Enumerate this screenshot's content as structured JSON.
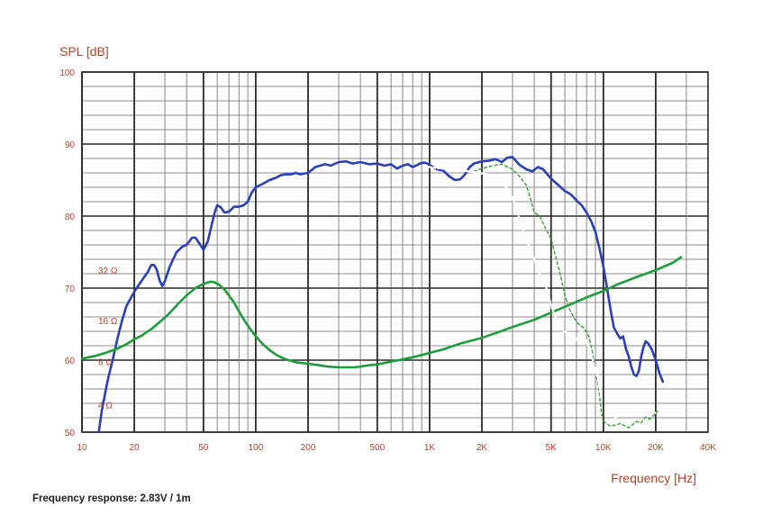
{
  "chart_data": {
    "type": "line",
    "title": "",
    "ylabel": "SPL [dB]",
    "xlabel": "Frequency [Hz]",
    "x_scale": "log",
    "xlim": [
      10,
      40000
    ],
    "ylim": [
      50,
      100
    ],
    "y_ticks": [
      {
        "value": 50,
        "label": "50"
      },
      {
        "value": 60,
        "label": "60"
      },
      {
        "value": 70,
        "label": "70"
      },
      {
        "value": 80,
        "label": "80"
      },
      {
        "value": 90,
        "label": "90"
      },
      {
        "value": 100,
        "label": "100"
      }
    ],
    "x_ticks": [
      {
        "value": 10,
        "label": "10"
      },
      {
        "value": 20,
        "label": "20"
      },
      {
        "value": 50,
        "label": "50"
      },
      {
        "value": 100,
        "label": "100"
      },
      {
        "value": 200,
        "label": "200"
      },
      {
        "value": 500,
        "label": "500"
      },
      {
        "value": 1000,
        "label": "1K"
      },
      {
        "value": 2000,
        "label": "2K"
      },
      {
        "value": 5000,
        "label": "5K"
      },
      {
        "value": 10000,
        "label": "10K"
      },
      {
        "value": 20000,
        "label": "20K"
      },
      {
        "value": 40000,
        "label": "40K"
      }
    ],
    "impedance_ticks": [
      {
        "value": 72.5,
        "label": "32 Ω"
      },
      {
        "value": 65.5,
        "label": "16 Ω"
      },
      {
        "value": 59.8,
        "label": "8 Ω"
      },
      {
        "value": 53.8,
        "label": "4 Ω"
      }
    ],
    "grid": true,
    "legend": "none",
    "series": [
      {
        "color": "#2b3fb8",
        "style": "solid",
        "points": [
          [
            12.5,
            50
          ],
          [
            13,
            53
          ],
          [
            14,
            57
          ],
          [
            15,
            60
          ],
          [
            16,
            63
          ],
          [
            17,
            65.5
          ],
          [
            18,
            67.5
          ],
          [
            20,
            69.5
          ],
          [
            22,
            71
          ],
          [
            24,
            72.3
          ],
          [
            25,
            73.2
          ],
          [
            26,
            73.2
          ],
          [
            27,
            72.5
          ],
          [
            28,
            71
          ],
          [
            29,
            70.3
          ],
          [
            30,
            71
          ],
          [
            32,
            73
          ],
          [
            35,
            75
          ],
          [
            38,
            75.8
          ],
          [
            40,
            76
          ],
          [
            43,
            77
          ],
          [
            45,
            77
          ],
          [
            48,
            76
          ],
          [
            50,
            75.3
          ],
          [
            53,
            76.5
          ],
          [
            56,
            79
          ],
          [
            58,
            80.5
          ],
          [
            60,
            81.5
          ],
          [
            63,
            81.2
          ],
          [
            66,
            80.5
          ],
          [
            70,
            80.6
          ],
          [
            75,
            81.3
          ],
          [
            80,
            81.3
          ],
          [
            85,
            81.5
          ],
          [
            90,
            82
          ],
          [
            95,
            83.3
          ],
          [
            100,
            84
          ],
          [
            110,
            84.5
          ],
          [
            120,
            85
          ],
          [
            130,
            85.3
          ],
          [
            140,
            85.7
          ],
          [
            150,
            85.8
          ],
          [
            160,
            85.8
          ],
          [
            170,
            86
          ],
          [
            180,
            85.8
          ],
          [
            200,
            86
          ],
          [
            220,
            86.8
          ],
          [
            250,
            87.2
          ],
          [
            270,
            87
          ],
          [
            300,
            87.5
          ],
          [
            330,
            87.6
          ],
          [
            360,
            87.3
          ],
          [
            400,
            87.5
          ],
          [
            450,
            87.2
          ],
          [
            500,
            87.3
          ],
          [
            550,
            87
          ],
          [
            600,
            87.2
          ],
          [
            650,
            86.6
          ],
          [
            700,
            87
          ],
          [
            750,
            87.2
          ],
          [
            800,
            86.8
          ],
          [
            850,
            87.1
          ],
          [
            900,
            87.4
          ],
          [
            950,
            87.4
          ],
          [
            1000,
            87.1
          ],
          [
            1100,
            86.5
          ],
          [
            1200,
            86.3
          ],
          [
            1300,
            85.5
          ],
          [
            1400,
            85
          ],
          [
            1500,
            85.1
          ],
          [
            1600,
            85.8
          ],
          [
            1700,
            86.8
          ],
          [
            1800,
            87.3
          ],
          [
            2000,
            87.6
          ],
          [
            2200,
            87.7
          ],
          [
            2400,
            87.9
          ],
          [
            2600,
            87.5
          ],
          [
            2800,
            88.1
          ],
          [
            3000,
            88.2
          ],
          [
            3300,
            87.1
          ],
          [
            3600,
            86.5
          ],
          [
            3900,
            86.2
          ],
          [
            4200,
            86.8
          ],
          [
            4500,
            86.5
          ],
          [
            5000,
            85.2
          ],
          [
            5500,
            84.3
          ],
          [
            6000,
            83.5
          ],
          [
            6500,
            83
          ],
          [
            7000,
            82.2
          ],
          [
            7500,
            81.5
          ],
          [
            8000,
            80.5
          ],
          [
            8500,
            79.3
          ],
          [
            9000,
            77.8
          ],
          [
            9500,
            75.5
          ],
          [
            10000,
            73
          ],
          [
            10500,
            70
          ],
          [
            11000,
            67
          ],
          [
            11500,
            64.5
          ],
          [
            12000,
            63.7
          ],
          [
            12500,
            63
          ],
          [
            13000,
            63.3
          ],
          [
            13500,
            61.5
          ],
          [
            14000,
            60.5
          ],
          [
            14500,
            59
          ],
          [
            15000,
            58
          ],
          [
            15500,
            57.8
          ],
          [
            16000,
            58.5
          ],
          [
            16500,
            60.5
          ],
          [
            17000,
            61.8
          ],
          [
            17500,
            62.6
          ],
          [
            18000,
            62.4
          ],
          [
            19000,
            61.5
          ],
          [
            20000,
            60
          ],
          [
            21000,
            58.2
          ],
          [
            22000,
            57
          ]
        ]
      },
      {
        "color": "#1e9c3c",
        "style": "solid",
        "points": [
          [
            10,
            60.2
          ],
          [
            12,
            60.6
          ],
          [
            14,
            61.1
          ],
          [
            16,
            61.6
          ],
          [
            18,
            62.2
          ],
          [
            20,
            62.9
          ],
          [
            22,
            63.4
          ],
          [
            25,
            64.3
          ],
          [
            28,
            65.3
          ],
          [
            30,
            65.9
          ],
          [
            33,
            66.9
          ],
          [
            36,
            67.9
          ],
          [
            40,
            69
          ],
          [
            45,
            70
          ],
          [
            50,
            70.6
          ],
          [
            55,
            70.9
          ],
          [
            58,
            70.8
          ],
          [
            62,
            70.4
          ],
          [
            66,
            69.8
          ],
          [
            70,
            69
          ],
          [
            75,
            68
          ],
          [
            80,
            66.8
          ],
          [
            85,
            65.7
          ],
          [
            90,
            64.8
          ],
          [
            95,
            64
          ],
          [
            100,
            63.3
          ],
          [
            110,
            62.2
          ],
          [
            120,
            61.4
          ],
          [
            130,
            60.8
          ],
          [
            140,
            60.4
          ],
          [
            150,
            60.1
          ],
          [
            170,
            59.7
          ],
          [
            200,
            59.5
          ],
          [
            230,
            59.3
          ],
          [
            260,
            59.1
          ],
          [
            300,
            59
          ],
          [
            330,
            59
          ],
          [
            370,
            59
          ],
          [
            400,
            59.1
          ],
          [
            450,
            59.3
          ],
          [
            500,
            59.4
          ],
          [
            600,
            59.8
          ],
          [
            700,
            60.1
          ],
          [
            800,
            60.4
          ],
          [
            900,
            60.7
          ],
          [
            1000,
            61
          ],
          [
            1200,
            61.5
          ],
          [
            1500,
            62.3
          ],
          [
            2000,
            63.1
          ],
          [
            2500,
            63.9
          ],
          [
            3000,
            64.6
          ],
          [
            4000,
            65.6
          ],
          [
            5000,
            66.6
          ],
          [
            6000,
            67.4
          ],
          [
            7000,
            68.1
          ],
          [
            8000,
            68.7
          ],
          [
            10000,
            69.6
          ],
          [
            12000,
            70.5
          ],
          [
            15000,
            71.4
          ],
          [
            20000,
            72.5
          ],
          [
            25000,
            73.5
          ],
          [
            28000,
            74.3
          ]
        ]
      },
      {
        "color": "#3a9a3a",
        "style": "dashed",
        "points": [
          [
            1800,
            86.2
          ],
          [
            2000,
            86.6
          ],
          [
            2300,
            87
          ],
          [
            2600,
            87.2
          ],
          [
            3000,
            86.5
          ],
          [
            3300,
            85.5
          ],
          [
            3600,
            84.3
          ],
          [
            3800,
            82.5
          ],
          [
            4000,
            80.5
          ],
          [
            4300,
            80
          ],
          [
            4600,
            78.5
          ],
          [
            5000,
            76.8
          ],
          [
            5300,
            74.5
          ],
          [
            5700,
            71.5
          ],
          [
            6000,
            69
          ],
          [
            6400,
            67
          ],
          [
            6800,
            65.8
          ],
          [
            7200,
            65
          ],
          [
            7700,
            64.5
          ],
          [
            8200,
            63.5
          ],
          [
            8600,
            61.5
          ],
          [
            9000,
            58.5
          ],
          [
            9400,
            56
          ],
          [
            9800,
            52.3
          ]
        ]
      },
      {
        "color": "#ffffff",
        "style": "dotted",
        "points": [
          [
            1000,
            86.8
          ],
          [
            1300,
            86.5
          ],
          [
            1600,
            86.3
          ],
          [
            1900,
            86
          ],
          [
            2200,
            85.8
          ],
          [
            2500,
            85
          ],
          [
            2800,
            83.8
          ],
          [
            3000,
            82.5
          ],
          [
            3200,
            80.5
          ],
          [
            3400,
            78.5
          ],
          [
            3600,
            76.8
          ],
          [
            3800,
            75.5
          ],
          [
            4000,
            74
          ],
          [
            4200,
            72.5
          ],
          [
            4500,
            71
          ],
          [
            4800,
            69.5
          ],
          [
            5000,
            67.5
          ],
          [
            5300,
            66
          ],
          [
            5600,
            64.5
          ],
          [
            6000,
            64
          ],
          [
            6500,
            63.4
          ],
          [
            7000,
            62.8
          ],
          [
            7500,
            64.2
          ],
          [
            8000,
            62.5
          ],
          [
            8500,
            61
          ],
          [
            9000,
            58.5
          ],
          [
            9300,
            57.5
          ],
          [
            9700,
            55
          ]
        ]
      },
      {
        "color": "#ffffff",
        "style": "dotted",
        "points": [
          [
            11500,
            51.8
          ],
          [
            12500,
            52.5
          ],
          [
            13500,
            52.3
          ],
          [
            14500,
            52.8
          ],
          [
            16000,
            52.4
          ],
          [
            17500,
            52.8
          ],
          [
            19000,
            52.5
          ],
          [
            20500,
            52.8
          ]
        ]
      },
      {
        "color": "#3a9a3a",
        "style": "dashed",
        "points": [
          [
            10000,
            51.5
          ],
          [
            11000,
            50.8
          ],
          [
            12500,
            51.2
          ],
          [
            14000,
            50.6
          ],
          [
            15500,
            51.5
          ],
          [
            16500,
            51.3
          ],
          [
            17500,
            52.1
          ],
          [
            18500,
            51.8
          ],
          [
            20500,
            52.9
          ]
        ]
      }
    ]
  },
  "caption": "Frequency response: 2.83V / 1m"
}
